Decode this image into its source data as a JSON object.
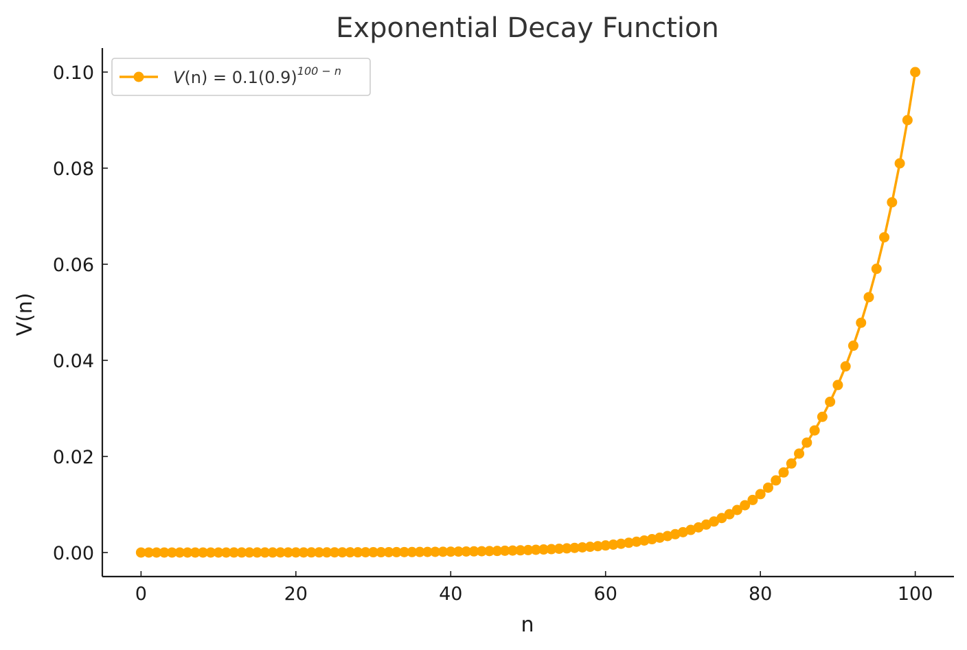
{
  "chart_data": {
    "type": "line",
    "title": "Exponential Decay Function",
    "xlabel": "n",
    "ylabel": "V(n)",
    "xlim": [
      -5,
      105
    ],
    "ylim": [
      -0.005,
      0.105
    ],
    "xticks": [
      0,
      20,
      40,
      60,
      80,
      100
    ],
    "xtick_labels": [
      "0",
      "20",
      "40",
      "60",
      "80",
      "100"
    ],
    "yticks": [
      0.0,
      0.02,
      0.04,
      0.06,
      0.08,
      0.1
    ],
    "ytick_labels": [
      "0.00",
      "0.02",
      "0.04",
      "0.06",
      "0.08",
      "0.10"
    ],
    "grid": false,
    "legend_position": "top-left",
    "series": [
      {
        "name_parts": {
          "lhs_v": "V",
          "lhs_arg": "(n)",
          "eq": " = 0.1(0.9)",
          "exponent": "100 − n"
        },
        "color": "#FFA500",
        "marker": "circle",
        "x": [
          0,
          1,
          2,
          3,
          4,
          5,
          6,
          7,
          8,
          9,
          10,
          11,
          12,
          13,
          14,
          15,
          16,
          17,
          18,
          19,
          20,
          21,
          22,
          23,
          24,
          25,
          26,
          27,
          28,
          29,
          30,
          31,
          32,
          33,
          34,
          35,
          36,
          37,
          38,
          39,
          40,
          41,
          42,
          43,
          44,
          45,
          46,
          47,
          48,
          49,
          50,
          51,
          52,
          53,
          54,
          55,
          56,
          57,
          58,
          59,
          60,
          61,
          62,
          63,
          64,
          65,
          66,
          67,
          68,
          69,
          70,
          71,
          72,
          73,
          74,
          75,
          76,
          77,
          78,
          79,
          80,
          81,
          82,
          83,
          84,
          85,
          86,
          87,
          88,
          89,
          90,
          91,
          92,
          93,
          94,
          95,
          96,
          97,
          98,
          99,
          100
        ],
        "y": [
          2.7e-06,
          3e-06,
          3.3e-06,
          3.7e-06,
          4.1e-06,
          4.6e-06,
          5.1e-06,
          5.6e-06,
          6.2e-06,
          6.9e-06,
          7.7e-06,
          8.5e-06,
          9.5e-06,
          1.05e-05,
          1.17e-05,
          1.3e-05,
          1.44e-05,
          1.6e-05,
          1.78e-05,
          1.98e-05,
          2.18e-05,
          2.43e-05,
          2.7e-05,
          2.99e-05,
          3.33e-05,
          3.7e-05,
          4.11e-05,
          4.56e-05,
          5.07e-05,
          5.63e-05,
          6.25e-05,
          6.95e-05,
          7.72e-05,
          8.58e-05,
          9.53e-05,
          0.0001059,
          0.0001177,
          0.0001308,
          0.0001453,
          0.0001614,
          0.0001794,
          0.0001993,
          0.0002214,
          0.000246,
          0.0002734,
          0.0003038,
          0.0003375,
          0.000375,
          0.0004167,
          0.000463,
          0.0005154,
          0.0005726,
          0.0006363,
          0.000707,
          0.0007855,
          0.0008728,
          0.0009698,
          0.0010775,
          0.0011973,
          0.0013303,
          0.0014781,
          0.0016423,
          0.0018248,
          0.0020276,
          0.0022529,
          0.0025032,
          0.0027813,
          0.0030903,
          0.0034337,
          0.0038152,
          0.0042391,
          0.0047101,
          0.0052335,
          0.005815,
          0.0064611,
          0.007179,
          0.0079766,
          0.0088629,
          0.0098477,
          0.0109419,
          0.0121577,
          0.0135085,
          0.0150095,
          0.0166772,
          0.0185302,
          0.0205891,
          0.0228768,
          0.0254187,
          0.028243,
          0.0313811,
          0.0348678,
          0.038742,
          0.0430467,
          0.0478297,
          0.0531441,
          0.059049,
          0.06561,
          0.0729,
          0.081,
          0.09,
          0.1
        ]
      }
    ]
  }
}
